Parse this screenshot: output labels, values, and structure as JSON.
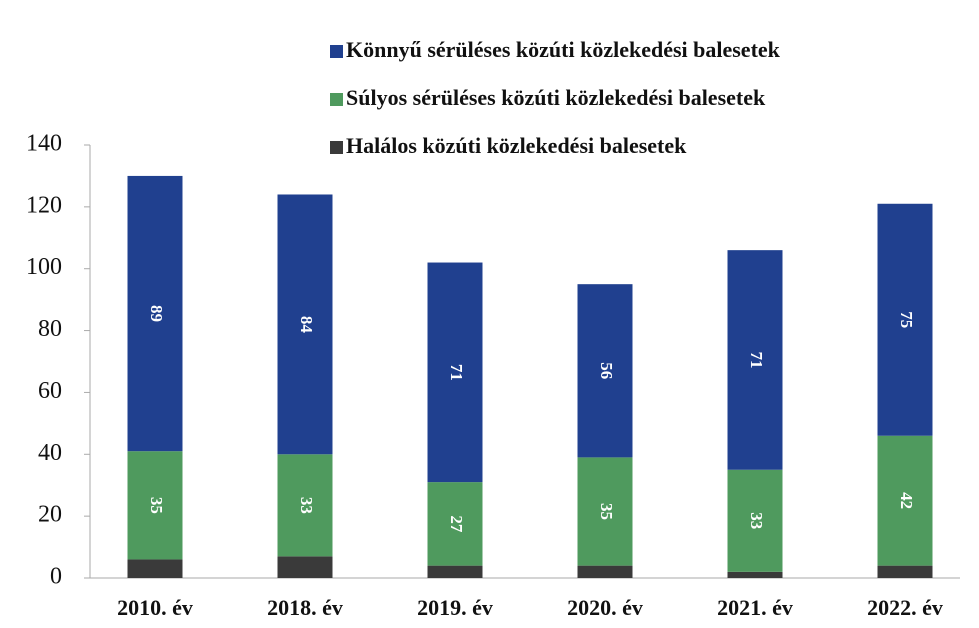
{
  "chart_data": {
    "type": "stacked_bar",
    "categories": [
      "2010. év",
      "2018. év",
      "2019. év",
      "2020. év",
      "2021. év",
      "2022. év"
    ],
    "series": [
      {
        "name": "Könnyű sérüléses közúti közlekedési balesetek",
        "color": "#20408f",
        "values": [
          89,
          84,
          71,
          56,
          71,
          75
        ]
      },
      {
        "name": "Súlyos sérüléses közúti közlekedési balesetek",
        "color": "#4f9a5e",
        "values": [
          35,
          33,
          27,
          35,
          33,
          42
        ]
      },
      {
        "name": "Halálos közúti közlekedési balesetek",
        "color": "#3a3a3a",
        "values": [
          6,
          7,
          4,
          4,
          2,
          4
        ]
      }
    ],
    "ylim": [
      0,
      140
    ],
    "yticks": [
      0,
      20,
      40,
      60,
      80,
      100,
      120,
      140
    ],
    "legend": "top"
  }
}
